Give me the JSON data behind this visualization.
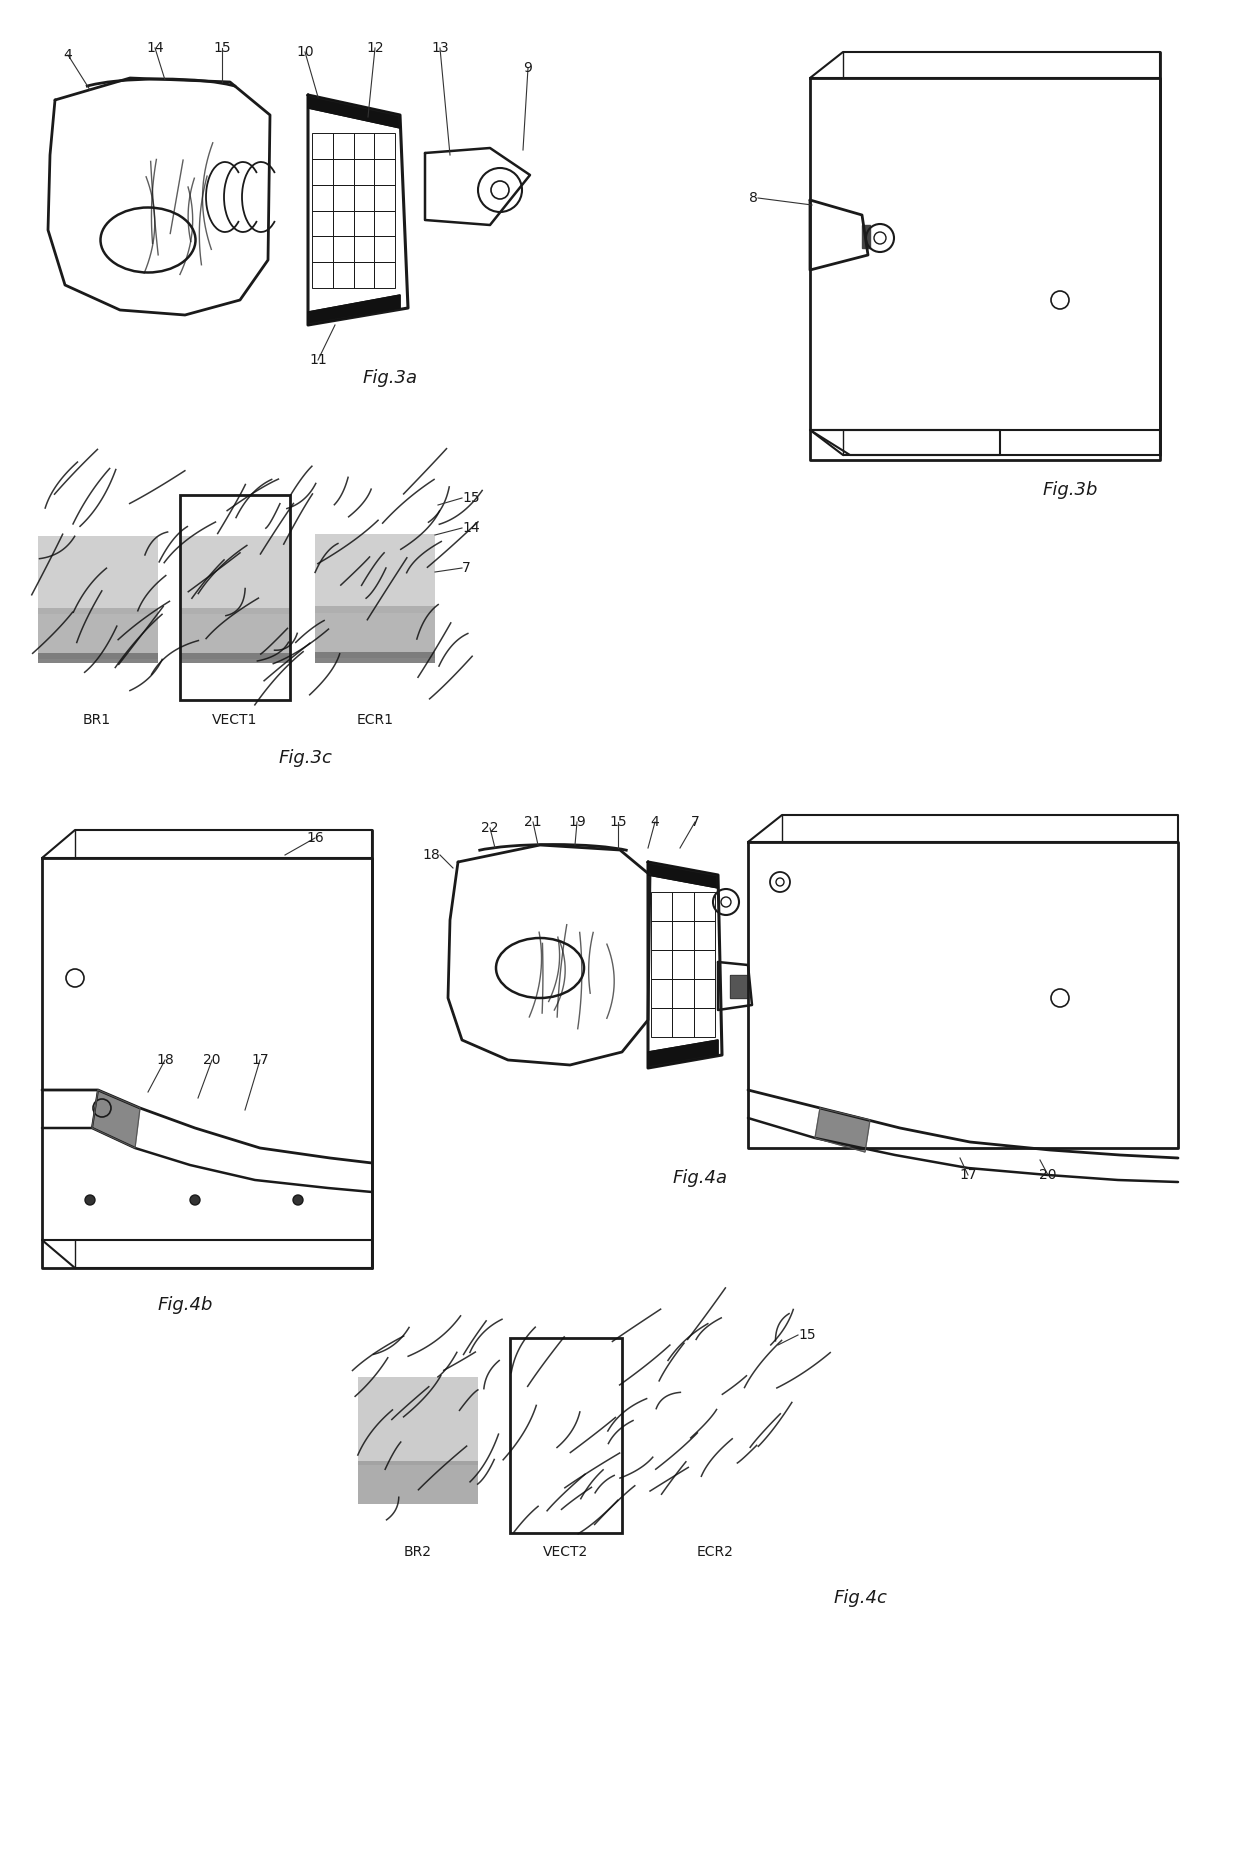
{
  "bg_color": "#ffffff",
  "line_color": "#1a1a1a",
  "fig3a_label": "Fig.3a",
  "fig3b_label": "Fig.3b",
  "fig3c_label": "Fig.3c",
  "fig4a_label": "Fig.4a",
  "fig4b_label": "Fig.4b",
  "fig4c_label": "Fig.4c"
}
